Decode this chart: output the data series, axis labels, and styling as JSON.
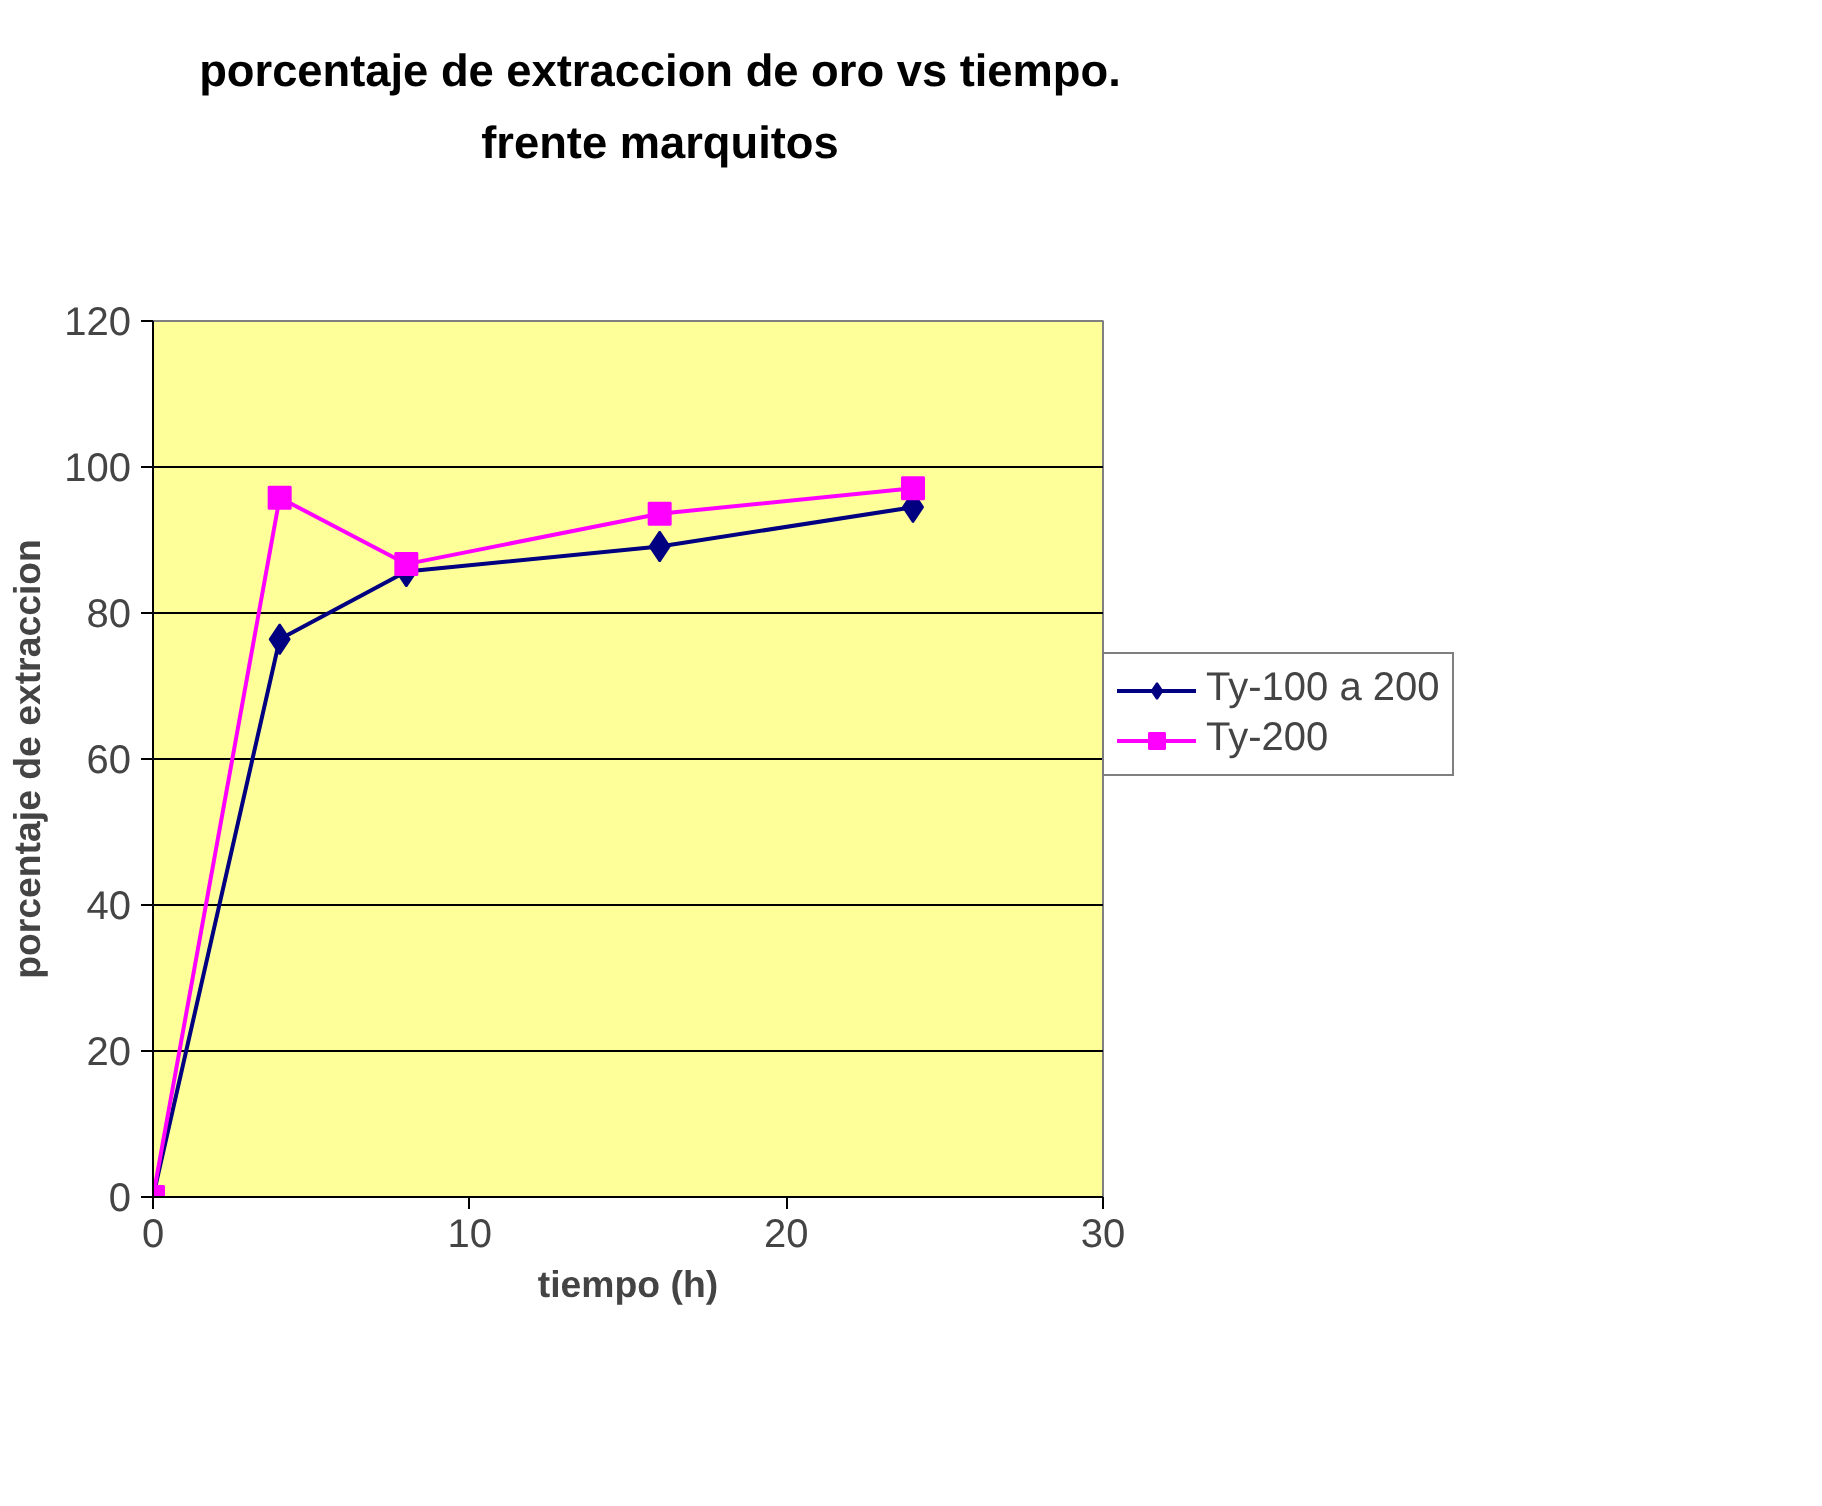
{
  "chart_data": {
    "type": "line",
    "title": "porcentaje de extraccion de oro vs tiempo.\nfrente marquitos",
    "xlabel": "tiempo (h)",
    "ylabel": "porcentaje de extraccion",
    "x": [
      0,
      4,
      8,
      16,
      24
    ],
    "series": [
      {
        "name": "Ty-100 a 200",
        "color": "#000080",
        "marker": "diamond",
        "values": [
          0,
          76.4,
          85.7,
          89.1,
          94.5
        ]
      },
      {
        "name": "Ty-200",
        "color": "#ff00ff",
        "marker": "square",
        "values": [
          0,
          95.8,
          86.7,
          93.6,
          97.1
        ]
      }
    ],
    "xlim": [
      0,
      30
    ],
    "xticks": [
      0,
      10,
      20,
      30
    ],
    "ylim": [
      0,
      120
    ],
    "yticks": [
      0,
      20,
      40,
      60,
      80,
      100,
      120
    ],
    "grid": "y",
    "legend": "right",
    "line_style": "solid"
  }
}
